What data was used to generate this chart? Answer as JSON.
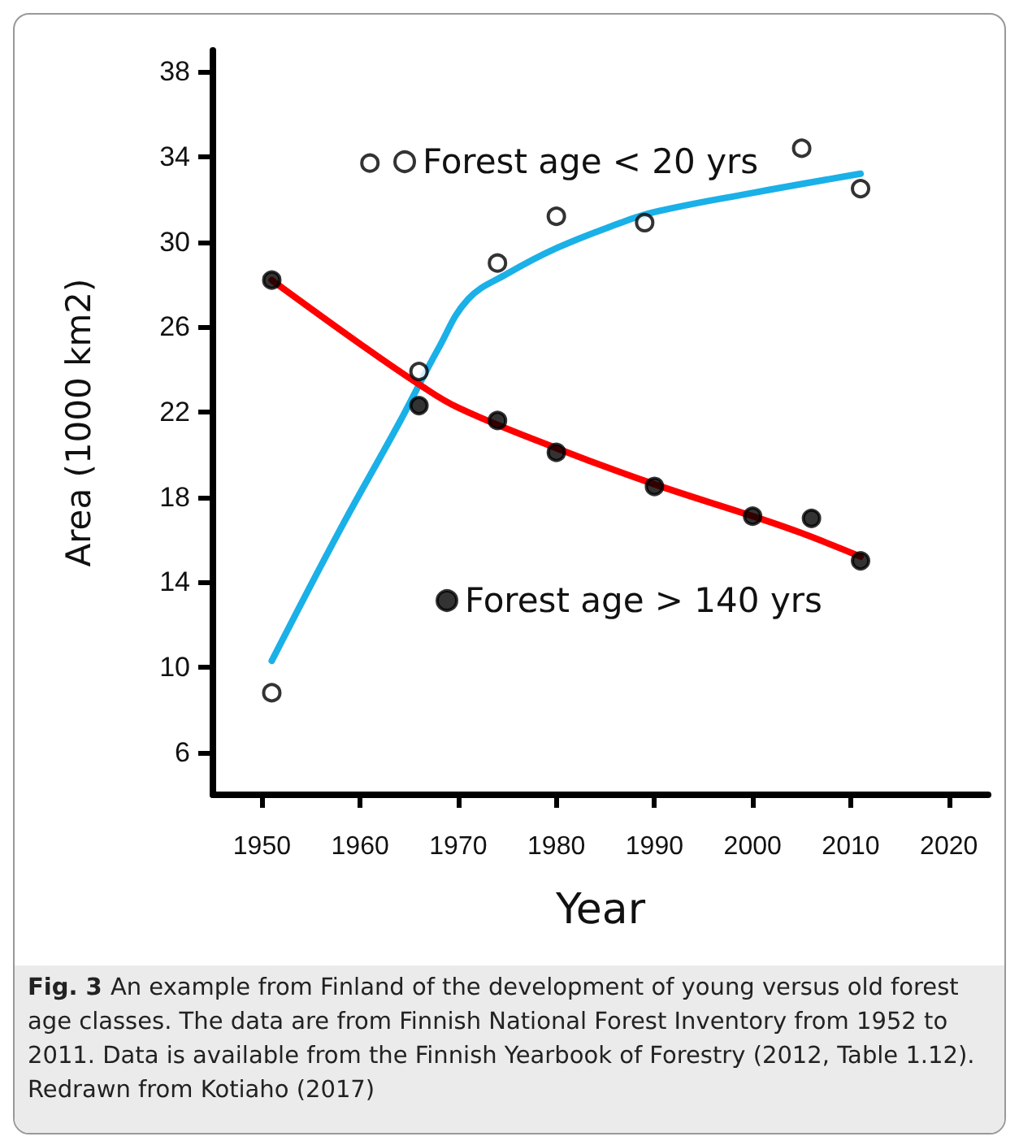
{
  "chart_data": {
    "type": "scatter",
    "xlabel": "Year",
    "ylabel": "Area (1000 km2)",
    "xlim": [
      1945,
      2024
    ],
    "xticks": [
      1950,
      1960,
      1970,
      1980,
      1990,
      2000,
      2010,
      2020
    ],
    "ylim": [
      4,
      39
    ],
    "yticks": [
      6,
      10,
      14,
      18,
      22,
      26,
      30,
      34,
      38
    ],
    "grid": false,
    "legend": "top",
    "series": [
      {
        "name": "Forest age < 20 yrs",
        "marker": "circle",
        "color": "#ffffff",
        "x": [
          1951,
          1961,
          1966,
          1974,
          1980,
          1989,
          2005,
          2011
        ],
        "values": [
          8.8,
          33.7,
          23.9,
          29.0,
          31.2,
          30.9,
          34.4,
          32.5
        ]
      },
      {
        "name": "Forest age > 140 yrs",
        "marker": "circle",
        "color": "#000000",
        "x": [
          1951,
          1966,
          1974,
          1980,
          1990,
          2000,
          2006,
          2011
        ],
        "values": [
          28.2,
          22.3,
          21.6,
          20.1,
          18.5,
          17.1,
          17.0,
          15.0
        ]
      },
      {
        "type": "line",
        "marker": "none",
        "color": "#1ab0e8",
        "x": [
          1951,
          1958,
          1964,
          1968,
          1971,
          1975,
          1980,
          1986,
          1990,
          2000,
          2011
        ],
        "values": [
          10.3,
          16.5,
          21.5,
          25.0,
          27.3,
          28.5,
          29.7,
          30.8,
          31.4,
          32.3,
          33.2
        ]
      },
      {
        "type": "line",
        "marker": "none",
        "color": "#ff0000",
        "x": [
          1951,
          1960,
          1966,
          1970,
          1980,
          1990,
          2000,
          2005,
          2011
        ],
        "values": [
          28.2,
          25.2,
          23.3,
          22.2,
          20.3,
          18.6,
          17.1,
          16.3,
          15.2
        ]
      }
    ],
    "annotations": [
      "Fig. 3",
      "An example from Finland of the development of young versus old forest age classes. The data are from Finnish National Forest Inventory from 1952 to 2011. Data is available from the Finnish Yearbook of Forestry (2012, Table 1.12). Redrawn from Kotiaho (2017)"
    ]
  }
}
